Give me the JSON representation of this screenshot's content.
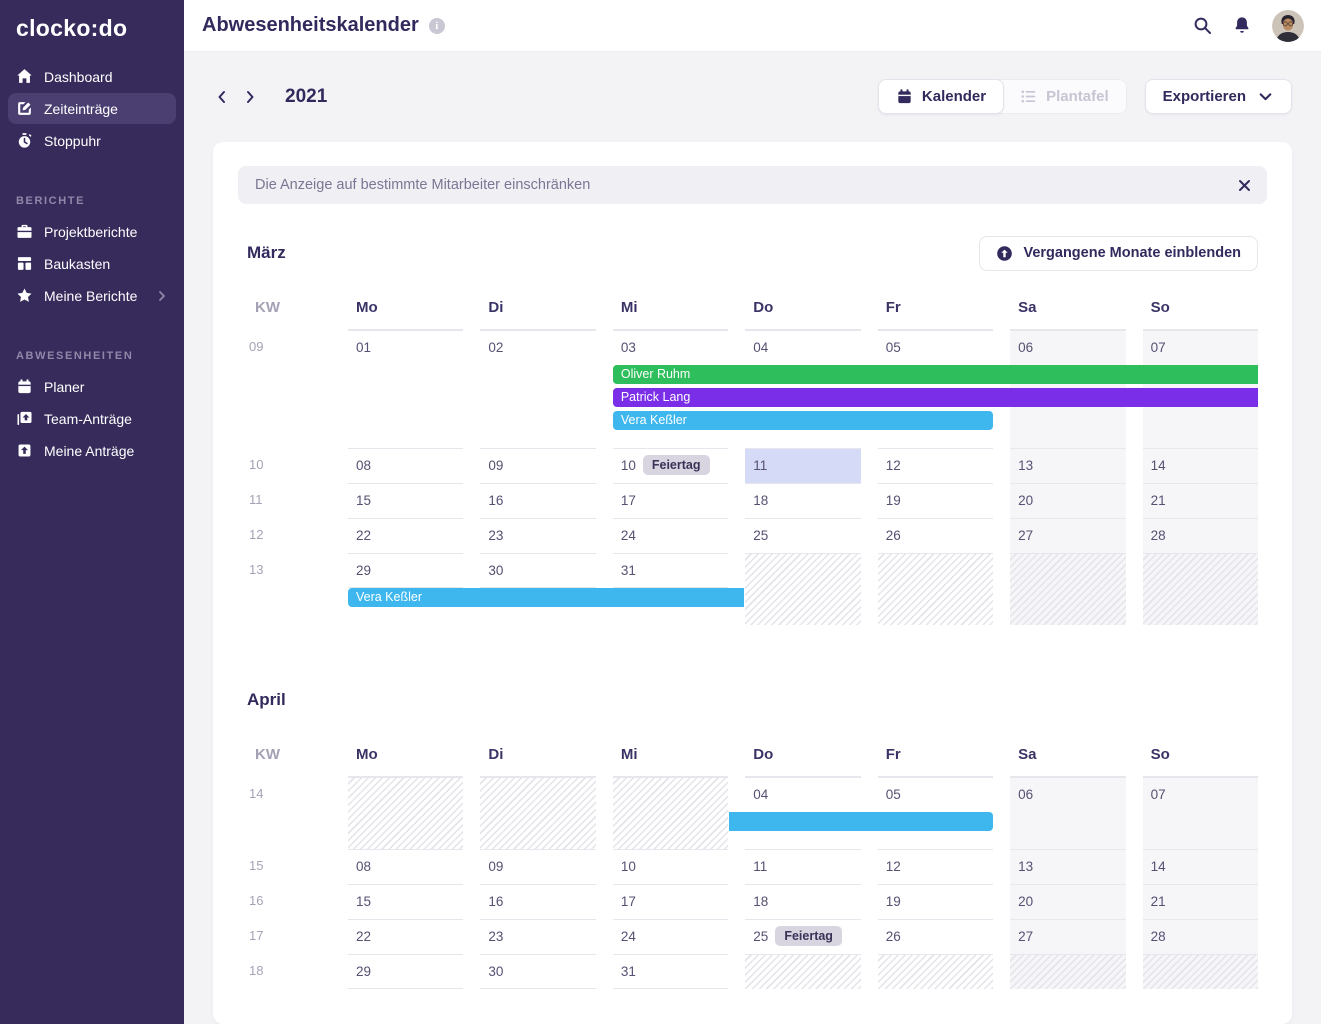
{
  "brand": {
    "logo": "clocko:do"
  },
  "sidebar": {
    "main": [
      {
        "label": "Dashboard",
        "icon": "home"
      },
      {
        "label": "Zeiteinträge",
        "icon": "edit",
        "active": true
      },
      {
        "label": "Stoppuhr",
        "icon": "stopwatch"
      }
    ],
    "sections": [
      {
        "title": "BERICHTE",
        "items": [
          {
            "label": "Projektberichte",
            "icon": "briefcase"
          },
          {
            "label": "Baukasten",
            "icon": "modules"
          },
          {
            "label": "Meine Berichte",
            "icon": "star",
            "chevron": true
          }
        ]
      },
      {
        "title": "ABWESENHEITEN",
        "items": [
          {
            "label": "Planer",
            "icon": "calendar"
          },
          {
            "label": "Team-Anträge",
            "icon": "doc-plane"
          },
          {
            "label": "Meine Anträge",
            "icon": "plane-square"
          }
        ]
      }
    ]
  },
  "header": {
    "title": "Abwesenheitskalender"
  },
  "toolbar": {
    "year": "2021",
    "view_calendar": "Kalender",
    "view_board": "Plantafel",
    "export_label": "Exportieren"
  },
  "filter": {
    "placeholder": "Die Anzeige auf bestimmte Mitarbeiter einschränken"
  },
  "calendar": {
    "weekday_headers": [
      "KW",
      "Mo",
      "Di",
      "Mi",
      "Do",
      "Fr",
      "Sa",
      "So"
    ],
    "colors": {
      "green": "#2EBE5C",
      "purple": "#7A2EE8",
      "blue": "#3EB7EF",
      "today": "#D5DAF6",
      "weekend": "#F6F6F9"
    },
    "months": [
      {
        "name": "März",
        "action": "Vergangene Monate einblenden",
        "weeks": [
          {
            "kw": "09",
            "days": [
              {
                "n": "01"
              },
              {
                "n": "02"
              },
              {
                "n": "03"
              },
              {
                "n": "04"
              },
              {
                "n": "05"
              },
              {
                "n": "06"
              },
              {
                "n": "07"
              }
            ],
            "events": [
              {
                "label": "Oliver Ruhm",
                "color": "green",
                "start": 3,
                "end": 7,
                "round_left": true,
                "round_right": false
              },
              {
                "label": "Patrick Lang",
                "color": "purple",
                "start": 3,
                "end": 7,
                "round_left": true,
                "round_right": false
              },
              {
                "label": "Vera Keßler",
                "color": "blue",
                "start": 3,
                "end": 5,
                "round_left": true,
                "round_right": true
              }
            ]
          },
          {
            "kw": "10",
            "days": [
              {
                "n": "08"
              },
              {
                "n": "09"
              },
              {
                "n": "10",
                "badge": "Feiertag"
              },
              {
                "n": "11",
                "today": true
              },
              {
                "n": "12"
              },
              {
                "n": "13"
              },
              {
                "n": "14"
              }
            ]
          },
          {
            "kw": "11",
            "days": [
              {
                "n": "15"
              },
              {
                "n": "16"
              },
              {
                "n": "17"
              },
              {
                "n": "18"
              },
              {
                "n": "19"
              },
              {
                "n": "20"
              },
              {
                "n": "21"
              }
            ]
          },
          {
            "kw": "12",
            "days": [
              {
                "n": "22"
              },
              {
                "n": "23"
              },
              {
                "n": "24"
              },
              {
                "n": "25"
              },
              {
                "n": "26"
              },
              {
                "n": "27"
              },
              {
                "n": "28"
              }
            ]
          },
          {
            "kw": "13",
            "days": [
              {
                "n": "29"
              },
              {
                "n": "30"
              },
              {
                "n": "31"
              },
              {
                "hatched": true
              },
              {
                "hatched": true
              },
              {
                "hatched": true
              },
              {
                "hatched": true
              }
            ],
            "events": [
              {
                "label": "Vera Keßler",
                "color": "blue",
                "start": 1,
                "end": 3,
                "round_left": true,
                "round_right": false
              }
            ]
          }
        ]
      },
      {
        "name": "April",
        "weeks": [
          {
            "kw": "14",
            "days": [
              {
                "hatched": true
              },
              {
                "hatched": true
              },
              {
                "hatched": true
              },
              {
                "n": "04"
              },
              {
                "n": "05"
              },
              {
                "n": "06"
              },
              {
                "n": "07"
              }
            ],
            "events": [
              {
                "label": "",
                "color": "blue",
                "start": 4,
                "end": 5,
                "round_left": false,
                "round_right": true
              }
            ]
          },
          {
            "kw": "15",
            "days": [
              {
                "n": "08"
              },
              {
                "n": "09"
              },
              {
                "n": "10"
              },
              {
                "n": "11"
              },
              {
                "n": "12"
              },
              {
                "n": "13"
              },
              {
                "n": "14"
              }
            ]
          },
          {
            "kw": "16",
            "days": [
              {
                "n": "15"
              },
              {
                "n": "16"
              },
              {
                "n": "17"
              },
              {
                "n": "18"
              },
              {
                "n": "19"
              },
              {
                "n": "20"
              },
              {
                "n": "21"
              }
            ]
          },
          {
            "kw": "17",
            "days": [
              {
                "n": "22"
              },
              {
                "n": "23"
              },
              {
                "n": "24"
              },
              {
                "n": "25",
                "badge": "Feiertag"
              },
              {
                "n": "26"
              },
              {
                "n": "27"
              },
              {
                "n": "28"
              }
            ]
          },
          {
            "kw": "18",
            "days": [
              {
                "n": "29"
              },
              {
                "n": "30"
              },
              {
                "n": "31"
              },
              {
                "hatched": true
              },
              {
                "hatched": true
              },
              {
                "hatched": true
              },
              {
                "hatched": true
              }
            ]
          }
        ]
      }
    ]
  }
}
